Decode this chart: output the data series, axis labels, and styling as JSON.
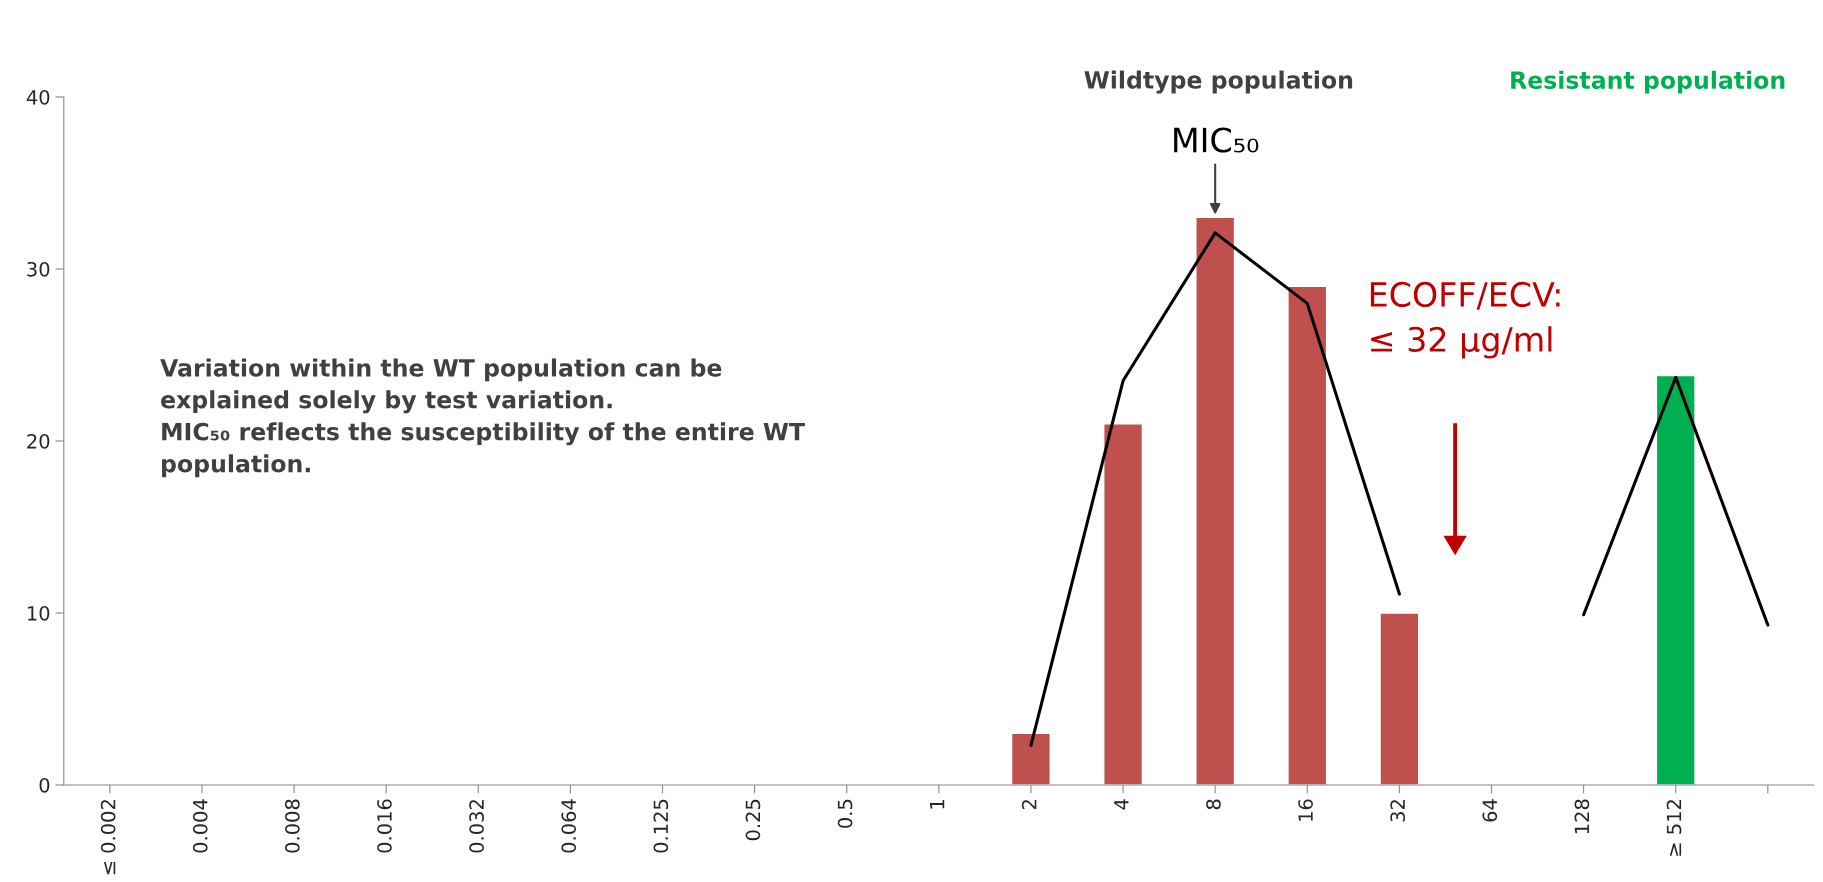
{
  "chart_data": {
    "type": "bar",
    "categories": [
      "≤ 0.002",
      "0.004",
      "0.008",
      "0.016",
      "0.032",
      "0.064",
      "0.125",
      "0.25",
      "0.5",
      "1",
      "2",
      "4",
      "8",
      "16",
      "32",
      "64",
      "128",
      "≥ 512",
      null
    ],
    "series": [
      {
        "color": "#c0504d",
        "values": [
          null,
          null,
          null,
          null,
          null,
          null,
          null,
          null,
          null,
          null,
          3,
          21,
          33,
          29,
          10,
          null,
          null,
          null,
          null
        ]
      },
      {
        "color": "#00b050",
        "values": [
          null,
          null,
          null,
          null,
          null,
          null,
          null,
          null,
          null,
          null,
          null,
          null,
          null,
          null,
          null,
          null,
          null,
          23.8,
          null
        ]
      },
      {
        "type": "line",
        "color": "#000000",
        "values": [
          null,
          null,
          null,
          null,
          null,
          null,
          null,
          null,
          null,
          null,
          2.3,
          23.5,
          32.1,
          28.0,
          11.1,
          null,
          null,
          null,
          null
        ]
      },
      {
        "type": "line",
        "color": "#000000",
        "values": [
          null,
          null,
          null,
          null,
          null,
          null,
          null,
          null,
          null,
          null,
          null,
          null,
          null,
          null,
          null,
          null,
          9.9,
          23.7,
          9.3
        ]
      }
    ],
    "ylim": [
      0,
      40
    ],
    "yticks": [
      0,
      10,
      20,
      30,
      40
    ],
    "grid": false,
    "legend": false,
    "annotations": [
      "Wildtype population",
      "Resistant population",
      {
        "text": "MIC₅₀",
        "x": "8",
        "y": 33
      },
      "ECOFF/ECV:\n≤ 32 μg/ml",
      "Variation within the WT population can be\nexplained solely by test variation.\nMIC₅₀ reflects the susceptibility of the entire WT\npopulation."
    ]
  }
}
